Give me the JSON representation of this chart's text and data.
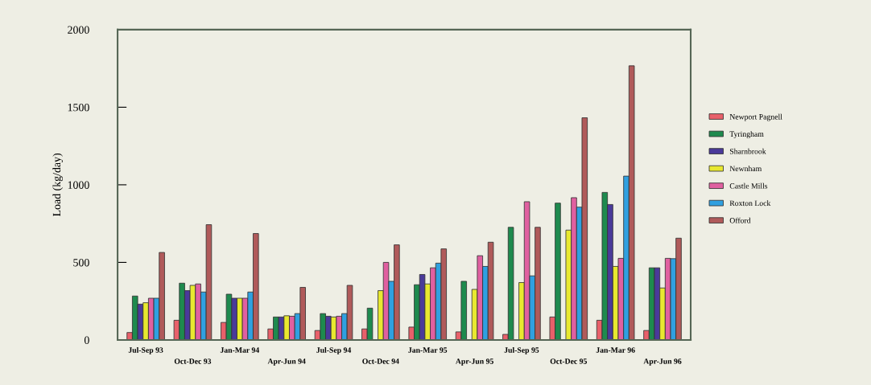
{
  "chart_data": {
    "type": "bar",
    "ylabel": "Load (kg/day)",
    "categories": [
      "Jul-Sep 93",
      "Oct-Dec 93",
      "Jan-Mar 94",
      "Apr-Jun 94",
      "Jul-Sep 94",
      "Oct-Dec 94",
      "Jan-Mar 95",
      "Apr-Jun 95",
      "Jul-Sep 95",
      "Oct-Dec 95",
      "Jan-Mar 96",
      "Apr-Jun 96"
    ],
    "series": [
      {
        "name": "Newport Pagnell",
        "color": "#e8606a",
        "values": [
          48,
          127,
          113,
          71,
          61,
          71,
          83,
          52,
          36,
          148,
          127,
          61
        ]
      },
      {
        "name": "Tyringham",
        "color": "#1e8a4e",
        "values": [
          283,
          366,
          295,
          148,
          170,
          205,
          356,
          378,
          726,
          882,
          951,
          465
        ]
      },
      {
        "name": "Sharnbrook",
        "color": "#4a3a9a",
        "values": [
          231,
          318,
          269,
          148,
          153,
          null,
          422,
          null,
          null,
          null,
          873,
          465
        ]
      },
      {
        "name": "Newnham",
        "color": "#e8e830",
        "values": [
          240,
          352,
          269,
          156,
          148,
          318,
          361,
          326,
          370,
          708,
          474,
          335
        ]
      },
      {
        "name": "Castle Mills",
        "color": "#e060a0",
        "values": [
          269,
          361,
          269,
          153,
          153,
          500,
          465,
          543,
          891,
          917,
          526,
          526
        ]
      },
      {
        "name": "Roxton Lock",
        "color": "#30a0e0",
        "values": [
          269,
          309,
          309,
          170,
          170,
          378,
          495,
          474,
          413,
          856,
          1056,
          524
        ]
      },
      {
        "name": "Offord",
        "color": "#b05a5a",
        "values": [
          564,
          743,
          686,
          339,
          352,
          613,
          587,
          630,
          726,
          1432,
          1767,
          656
        ]
      }
    ],
    "ylim": [
      0,
      2000
    ],
    "yticks": [
      0,
      500,
      1000,
      1500,
      2000
    ],
    "grid": false,
    "legend": "right"
  }
}
